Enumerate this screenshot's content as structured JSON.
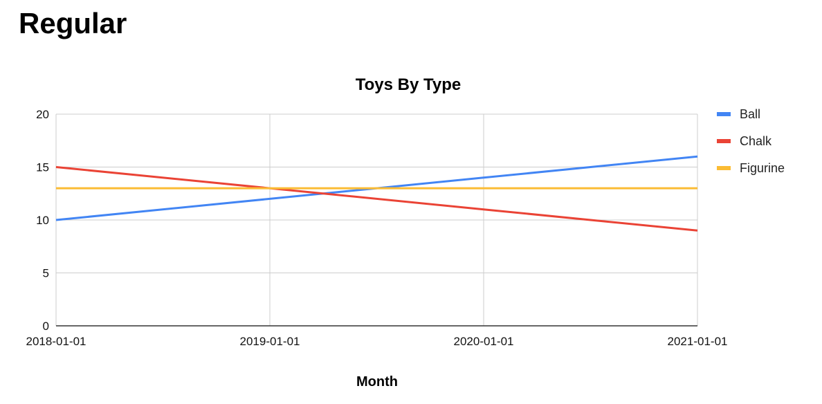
{
  "page": {
    "heading": "Regular"
  },
  "chart_data": {
    "type": "line",
    "title": "Toys By Type",
    "xlabel": "Month",
    "ylabel": "",
    "x": [
      "2018-01-01",
      "2019-01-01",
      "2020-01-01",
      "2021-01-01"
    ],
    "ylim": [
      0,
      20
    ],
    "yticks": [
      0,
      5,
      10,
      15,
      20
    ],
    "grid": true,
    "legend_position": "right",
    "series": [
      {
        "name": "Ball",
        "color": "#4285f4",
        "values": [
          10,
          12,
          14,
          16
        ]
      },
      {
        "name": "Chalk",
        "color": "#ea4335",
        "values": [
          15,
          13,
          11,
          9
        ]
      },
      {
        "name": "Figurine",
        "color": "#fbbc34",
        "values": [
          13,
          13,
          13,
          13
        ]
      }
    ]
  }
}
